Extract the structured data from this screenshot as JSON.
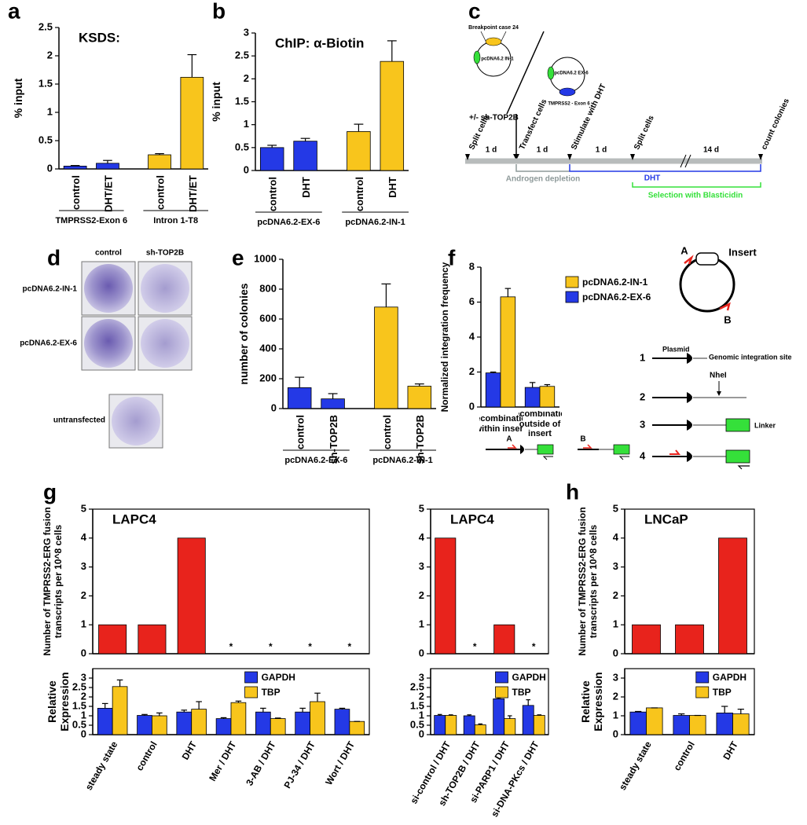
{
  "panel_labels": [
    "a",
    "b",
    "c",
    "d",
    "e",
    "f",
    "g",
    "h"
  ],
  "chart_data": [
    {
      "type": "bar",
      "title": "KSDS:",
      "ylabel": "% input",
      "categories": [
        "control",
        "DHT/ET",
        "control",
        "DHT/ET"
      ],
      "group_labels": [
        "TMPRSS2-Exon 6",
        "Intron 1-T8"
      ],
      "values": [
        0.05,
        0.1,
        0.25,
        1.62
      ],
      "errors": [
        0.01,
        0.05,
        0.02,
        0.4
      ],
      "colors": [
        "#2439e6",
        "#2439e6",
        "#f8c51c",
        "#f8c51c"
      ],
      "ylim": [
        0,
        2.5
      ],
      "yticks": [
        0,
        0.5,
        1,
        1.5,
        2,
        2.5
      ]
    },
    {
      "type": "bar",
      "title": "ChIP: α-Biotin",
      "ylabel": "% input",
      "categories": [
        "control",
        "DHT",
        "control",
        "DHT"
      ],
      "group_labels": [
        "pcDNA6.2-EX-6",
        "pcDNA6.2-IN-1"
      ],
      "values": [
        0.5,
        0.64,
        0.85,
        2.38
      ],
      "errors": [
        0.05,
        0.06,
        0.16,
        0.45
      ],
      "colors": [
        "#2439e6",
        "#2439e6",
        "#f8c51c",
        "#f8c51c"
      ],
      "ylim": [
        0,
        3
      ],
      "yticks": [
        0,
        0.5,
        1,
        1.5,
        2,
        2.5,
        3
      ]
    },
    {
      "type": "bar",
      "ylabel": "number of colonies",
      "categories": [
        "control",
        "sh-TOP2B",
        "control",
        "sh-TOP2B"
      ],
      "group_labels": [
        "pcDNA6.2-EX-6",
        "pcDNA6.2-IN-1"
      ],
      "values": [
        140,
        65,
        680,
        150
      ],
      "errors": [
        70,
        35,
        155,
        15
      ],
      "colors": [
        "#2439e6",
        "#2439e6",
        "#f8c51c",
        "#f8c51c"
      ],
      "ylim": [
        0,
        1000
      ],
      "yticks": [
        0,
        200,
        400,
        600,
        800,
        1000
      ]
    },
    {
      "type": "bar",
      "ylabel": "Normalized integration frequency",
      "categories": [
        "Recombination within insert",
        "Recombination outside of insert"
      ],
      "series": [
        {
          "name": "pcDNA6.2-EX-6",
          "color": "#2439e6",
          "values": [
            1.95,
            1.12
          ],
          "errors": [
            0.05,
            0.28
          ]
        },
        {
          "name": "pcDNA6.2-IN-1",
          "color": "#f8c51c",
          "values": [
            6.3,
            1.18
          ],
          "errors": [
            0.48,
            0.1
          ]
        }
      ],
      "ylim": [
        0,
        8
      ],
      "yticks": [
        0,
        2,
        4,
        6,
        8
      ],
      "legend": "right",
      "legend_reversed": true
    },
    {
      "type": "bar",
      "title": "LAPC4",
      "ylabel": "Number of TMPRSS2-ERG fusion transcripts per 10^8 cells",
      "values": [
        1,
        1,
        4,
        null,
        null,
        null,
        null
      ],
      "color": "#e8231c",
      "missing_label": "*",
      "ylim": [
        0,
        5
      ],
      "yticks": [
        0,
        1,
        2,
        3,
        4,
        5
      ],
      "frame": true
    },
    {
      "type": "bar",
      "ylabel": "Relative Expression",
      "categories": [
        "steady state",
        "control",
        "DHT",
        "Mer / DHT",
        "3-AB / DHT",
        "PJ-34 / DHT",
        "Wort / DHT"
      ],
      "series": [
        {
          "name": "GAPDH",
          "color": "#2439e6",
          "values": [
            1.4,
            1.02,
            1.2,
            0.85,
            1.2,
            1.2,
            1.35
          ],
          "errors": [
            0.25,
            0.05,
            0.1,
            0.05,
            0.2,
            0.2,
            0.05
          ]
        },
        {
          "name": "TBP",
          "color": "#f8c51c",
          "values": [
            2.55,
            1.0,
            1.35,
            1.7,
            0.85,
            1.75,
            0.7
          ],
          "errors": [
            0.35,
            0.15,
            0.4,
            0.08,
            0.03,
            0.45,
            0
          ]
        }
      ],
      "ylim": [
        0,
        3.5
      ],
      "yticks": [
        0,
        0.5,
        1,
        1.5,
        2,
        2.5,
        3
      ],
      "frame": true,
      "legend": "upper right"
    },
    {
      "type": "bar",
      "title": "LAPC4",
      "values": [
        4,
        null,
        1,
        null
      ],
      "color": "#e8231c",
      "missing_label": "*",
      "ylim": [
        0,
        5
      ],
      "yticks": [
        0,
        1,
        2,
        3,
        4,
        5
      ],
      "frame": true
    },
    {
      "type": "bar",
      "categories": [
        "si-control / DHT",
        "sh-TOP2B / DHT",
        "si-PARP1 / DHT",
        "si-DNA-PKcs / DHT"
      ],
      "series": [
        {
          "name": "GAPDH",
          "color": "#2439e6",
          "values": [
            1.02,
            1.0,
            1.9,
            1.55
          ],
          "errors": [
            0.05,
            0.05,
            0.05,
            0.3
          ]
        },
        {
          "name": "TBP",
          "color": "#f8c51c",
          "values": [
            1.02,
            0.52,
            0.85,
            1.02
          ],
          "errors": [
            0.03,
            0.05,
            0.15,
            0.03
          ]
        }
      ],
      "ylim": [
        0,
        3.5
      ],
      "yticks": [
        0,
        0.5,
        1,
        1.5,
        2,
        2.5,
        3
      ],
      "frame": true,
      "legend": "upper right"
    },
    {
      "type": "bar",
      "title": "LNCaP",
      "ylabel": "Number of TMPRSS2-ERG fusion transcripts per 10^8 cells",
      "values": [
        1,
        1,
        4
      ],
      "color": "#e8231c",
      "ylim": [
        0,
        5
      ],
      "yticks": [
        0,
        1,
        2,
        3,
        4,
        5
      ],
      "frame": true
    },
    {
      "type": "bar",
      "ylabel": "Relative Expression",
      "categories": [
        "steady state",
        "control",
        "DHT"
      ],
      "series": [
        {
          "name": "GAPDH",
          "color": "#2439e6",
          "values": [
            1.2,
            1.02,
            1.15
          ],
          "errors": [
            0.03,
            0.08,
            0.35
          ]
        },
        {
          "name": "TBP",
          "color": "#f8c51c",
          "values": [
            1.42,
            1.02,
            1.1
          ],
          "errors": [
            0,
            0,
            0.25
          ]
        }
      ],
      "ylim": [
        0,
        3.5
      ],
      "yticks": [
        0,
        1,
        2,
        3
      ],
      "frame": true,
      "legend": "upper right"
    }
  ],
  "timeline": {
    "plasmid_insert": "Breakpoint case 24",
    "plasmid_in": "pcDNA6.2 IN-1",
    "plasmid_ex": "pcDNA6.2 EX-6",
    "ex_insert": "TMPRSS2 - Exon 6",
    "treatment": "+/- sh-TOP2B",
    "steps": [
      "Split cells",
      "Transfect cells",
      "Stimulate with DHT",
      "Split cells",
      "count colonies"
    ],
    "durations": [
      "1 d",
      "1 d",
      "1 d",
      "14 d"
    ],
    "phases": [
      "Androgen depletion",
      "DHT",
      "Selection with Blasticidin"
    ]
  },
  "plates": {
    "columns": [
      "control",
      "sh-TOP2B"
    ],
    "rows": [
      "pcDNA6.2-IN-1",
      "pcDNA6.2-EX-6",
      "untransfected"
    ]
  },
  "schematic": {
    "primer_sites": [
      "A",
      "B"
    ],
    "insert": "Insert",
    "steps": [
      "1",
      "2",
      "3",
      "4"
    ],
    "plasmid": "Plasmid",
    "integration_site": "Genomic integration site",
    "enzyme": "NheI",
    "linker": "Linker",
    "assay_labels": [
      "A",
      "B"
    ]
  }
}
